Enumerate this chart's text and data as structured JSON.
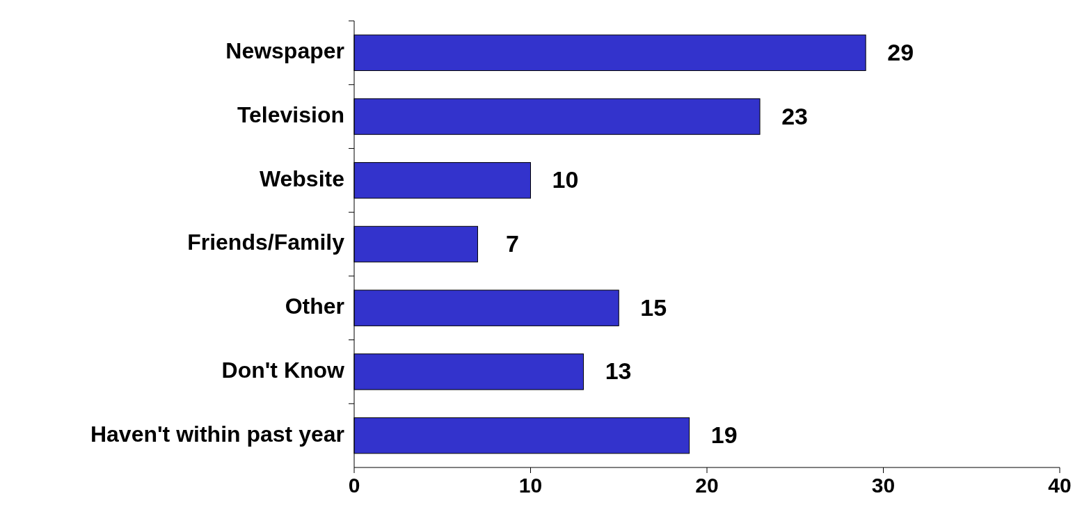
{
  "chart_data": {
    "type": "bar",
    "orientation": "horizontal",
    "categories": [
      "Newspaper",
      "Television",
      "Website",
      "Friends/Family",
      "Other",
      "Don't Know",
      "Haven't within past year"
    ],
    "values": [
      29,
      23,
      10,
      7,
      15,
      13,
      19
    ],
    "color": "#3333cc",
    "xlim": [
      0,
      40
    ],
    "xticks": [
      0,
      10,
      20,
      30,
      40
    ],
    "data_labels": true
  }
}
